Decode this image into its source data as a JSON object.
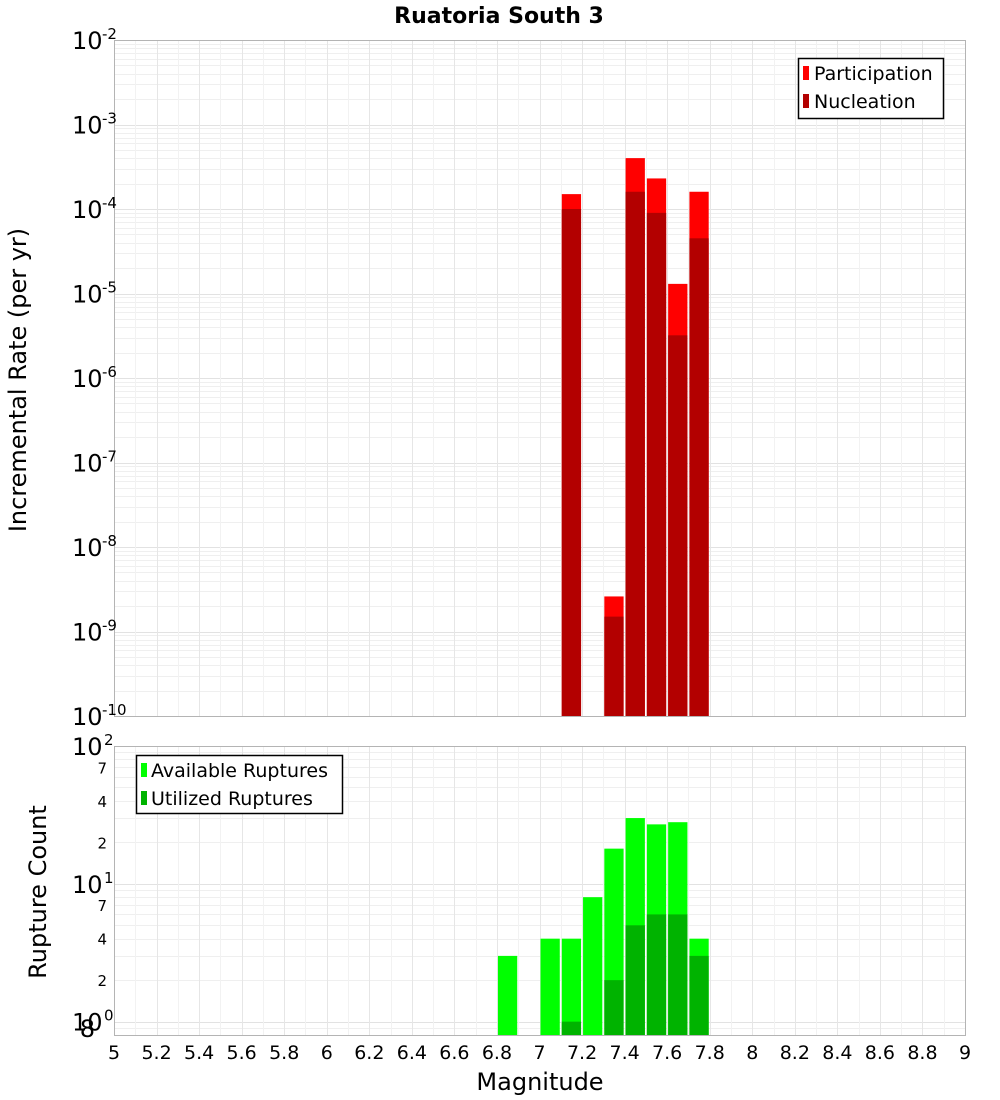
{
  "chart_data": [
    {
      "type": "bar",
      "title": "Ruatoria South 3",
      "ylabel": "Incremental Rate (per yr)",
      "xlabel": "",
      "xlim": [
        5,
        9
      ],
      "ylim": [
        1e-10,
        0.01
      ],
      "y_scale": "log",
      "y_tick_bases": [
        "10",
        "10",
        "10",
        "10",
        "10",
        "10",
        "10",
        "10",
        "10"
      ],
      "y_tick_exponents": [
        "-2",
        "-3",
        "-4",
        "-5",
        "-6",
        "-7",
        "-8",
        "-9",
        "-10"
      ],
      "grid": true,
      "legend_position": "top-right",
      "bin_width": 0.1,
      "x": [
        7.15,
        7.35,
        7.45,
        7.55,
        7.65,
        7.75
      ],
      "series": [
        {
          "name": "Participation",
          "color": "#ff0000",
          "values": [
            0.00015,
            2.6e-09,
            0.0004,
            0.00023,
            1.3e-05,
            0.00016
          ]
        },
        {
          "name": "Nucleation",
          "color": "#b30000",
          "values": [
            0.0001,
            1.5e-09,
            0.00016,
            9e-05,
            3.2e-06,
            4.5e-05
          ]
        }
      ]
    },
    {
      "type": "bar",
      "title": "",
      "ylabel": "Rupture Count",
      "xlabel": "Magnitude",
      "xlim": [
        5,
        9
      ],
      "x_ticks": [
        "5",
        "5.2",
        "5.4",
        "5.6",
        "5.8",
        "6",
        "6.2",
        "6.4",
        "6.6",
        "6.8",
        "7",
        "7.2",
        "7.4",
        "7.6",
        "7.8",
        "8",
        "8.2",
        "8.4",
        "8.6",
        "8.8",
        "9"
      ],
      "ylim": [
        0.8,
        100
      ],
      "y_scale": "log",
      "y_major_ticks": [
        {
          "base": "10",
          "exp": "2"
        },
        {
          "base": "10",
          "exp": "1"
        },
        {
          "base": "10",
          "exp": "0"
        }
      ],
      "y_minor_ticks": [
        {
          "label": "7",
          "value": 70
        },
        {
          "label": "4",
          "value": 40
        },
        {
          "label": "2",
          "value": 20
        },
        {
          "label": "7",
          "value": 7
        },
        {
          "label": "4",
          "value": 4
        },
        {
          "label": "2",
          "value": 2
        },
        {
          "label": "8",
          "value": 0.8
        }
      ],
      "grid": true,
      "legend_position": "top-left",
      "bin_width": 0.1,
      "x": [
        6.85,
        6.95,
        7.05,
        7.15,
        7.25,
        7.35,
        7.45,
        7.55,
        7.65,
        7.75
      ],
      "series": [
        {
          "name": "Available Ruptures",
          "color": "#00ff00",
          "values": [
            3,
            0,
            4,
            4,
            8,
            18,
            30,
            27,
            28,
            4
          ]
        },
        {
          "name": "Utilized Ruptures",
          "color": "#00b300",
          "values": [
            0,
            0,
            0,
            1,
            0,
            2,
            5,
            6,
            6,
            3
          ]
        }
      ]
    }
  ]
}
